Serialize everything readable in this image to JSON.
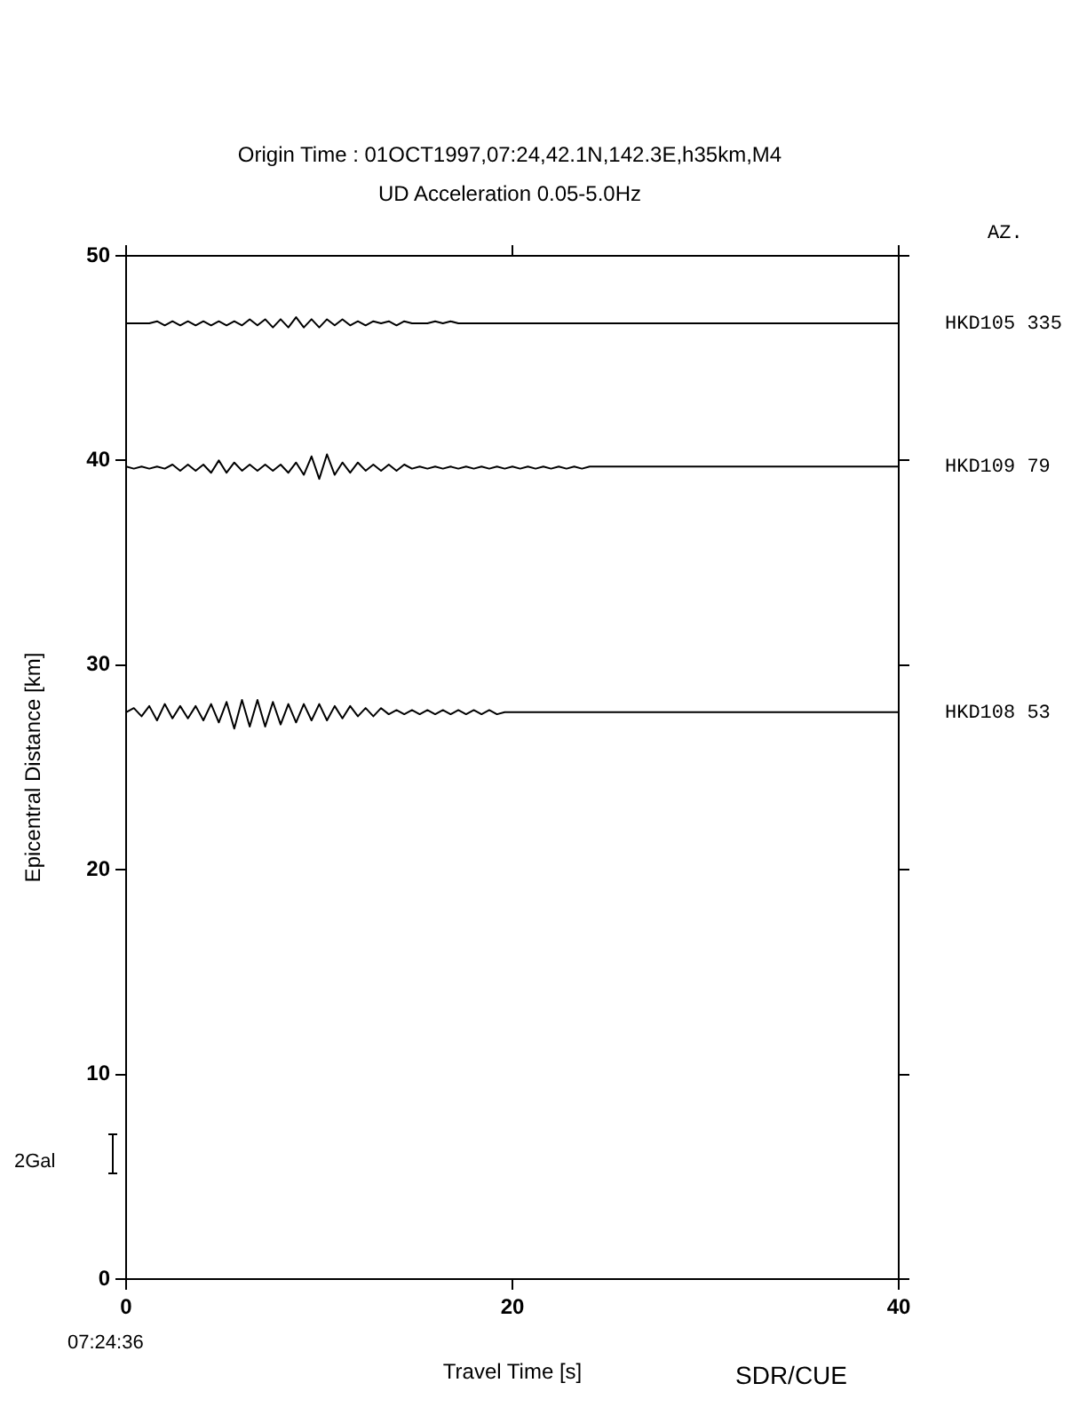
{
  "chart_data": {
    "type": "line",
    "title": "Origin Time : 01OCT1997,07:24,42.1N,142.3E,h35km,M4",
    "subtitle": "UD Acceleration 0.05-5.0Hz",
    "xlabel": "Travel Time [s]",
    "ylabel": "Epicentral Distance [km]",
    "annotations": [
      "AZ.",
      "2Gal",
      "07:24:36",
      "SDR/CUE"
    ],
    "x": [
      0,
      0.4,
      0.8,
      1.2,
      1.6,
      2,
      2.4,
      2.8,
      3.2,
      3.6,
      4,
      4.4,
      4.8,
      5.2,
      5.6,
      6,
      6.4,
      6.8,
      7.2,
      7.6,
      8,
      8.4,
      8.8,
      9.2,
      9.6,
      10,
      10.4,
      10.8,
      11.2,
      11.6,
      12,
      12.4,
      12.8,
      13.2,
      13.6,
      14,
      14.4,
      14.8,
      15.2,
      15.6,
      16,
      16.4,
      16.8,
      17.2,
      17.6,
      18,
      18.4,
      18.8,
      19.2,
      19.6,
      20,
      20.4,
      20.8,
      21.2,
      21.6,
      22,
      22.4,
      22.8,
      23.2,
      23.6,
      24,
      24.4,
      24.8,
      25.2,
      25.6,
      26,
      26.4,
      26.8,
      27.2,
      27.6,
      28,
      28.4,
      28.8,
      29.2,
      29.6,
      30,
      30.4,
      30.8,
      31.2,
      31.6,
      32,
      32.4,
      32.8,
      33.2,
      33.6,
      34,
      34.4,
      34.8,
      35.2,
      35.6,
      36,
      36.4,
      36.8,
      37.2,
      37.6,
      38,
      38.4,
      38.8,
      39.2,
      39.6,
      40
    ],
    "series": [
      {
        "name": "HKD105 335",
        "color": "#000000",
        "values": [
          46.7,
          46.7,
          46.7,
          46.7,
          46.8,
          46.6,
          46.8,
          46.6,
          46.8,
          46.6,
          46.8,
          46.6,
          46.8,
          46.6,
          46.8,
          46.6,
          46.9,
          46.6,
          46.9,
          46.5,
          46.9,
          46.5,
          47.0,
          46.5,
          46.9,
          46.5,
          46.9,
          46.6,
          46.9,
          46.6,
          46.8,
          46.6,
          46.8,
          46.7,
          46.8,
          46.6,
          46.8,
          46.7,
          46.7,
          46.7,
          46.8,
          46.7,
          46.8,
          46.7,
          46.7,
          46.7,
          46.7,
          46.7,
          46.7,
          46.7,
          46.7,
          46.7,
          46.7,
          46.7,
          46.7,
          46.7,
          46.7,
          46.7,
          46.7,
          46.7,
          46.7,
          46.7,
          46.7,
          46.7,
          46.7,
          46.7,
          46.7,
          46.7,
          46.7,
          46.7,
          46.7,
          46.7,
          46.7,
          46.7,
          46.7,
          46.7,
          46.7,
          46.7,
          46.7,
          46.7,
          46.7,
          46.7,
          46.7,
          46.7,
          46.7,
          46.7,
          46.7,
          46.7,
          46.7,
          46.7,
          46.7,
          46.7,
          46.7,
          46.7,
          46.7,
          46.7,
          46.7,
          46.7,
          46.7,
          46.7,
          46.7
        ]
      },
      {
        "name": "HKD109 79",
        "color": "#000000",
        "values": [
          39.7,
          39.6,
          39.7,
          39.6,
          39.7,
          39.6,
          39.8,
          39.5,
          39.8,
          39.5,
          39.8,
          39.4,
          40.0,
          39.4,
          39.9,
          39.5,
          39.8,
          39.5,
          39.8,
          39.5,
          39.8,
          39.4,
          39.9,
          39.3,
          40.2,
          39.1,
          40.3,
          39.3,
          39.9,
          39.4,
          39.9,
          39.5,
          39.8,
          39.5,
          39.8,
          39.5,
          39.8,
          39.6,
          39.7,
          39.6,
          39.7,
          39.6,
          39.7,
          39.6,
          39.7,
          39.6,
          39.7,
          39.6,
          39.7,
          39.6,
          39.7,
          39.6,
          39.7,
          39.6,
          39.7,
          39.6,
          39.7,
          39.6,
          39.7,
          39.6,
          39.7,
          39.7,
          39.7,
          39.7,
          39.7,
          39.7,
          39.7,
          39.7,
          39.7,
          39.7,
          39.7,
          39.7,
          39.7,
          39.7,
          39.7,
          39.7,
          39.7,
          39.7,
          39.7,
          39.7,
          39.7,
          39.7,
          39.7,
          39.7,
          39.7,
          39.7,
          39.7,
          39.7,
          39.7,
          39.7,
          39.7,
          39.7,
          39.7,
          39.7,
          39.7,
          39.7,
          39.7,
          39.7,
          39.7,
          39.7,
          39.7
        ]
      },
      {
        "name": "HKD108 53",
        "color": "#000000",
        "values": [
          27.7,
          27.9,
          27.5,
          28.0,
          27.3,
          28.1,
          27.4,
          28.0,
          27.4,
          28.0,
          27.3,
          28.1,
          27.2,
          28.2,
          26.9,
          28.3,
          27.0,
          28.3,
          27.0,
          28.2,
          27.1,
          28.1,
          27.2,
          28.1,
          27.3,
          28.1,
          27.3,
          28.0,
          27.4,
          28.0,
          27.5,
          27.9,
          27.5,
          27.9,
          27.6,
          27.8,
          27.6,
          27.8,
          27.6,
          27.8,
          27.6,
          27.8,
          27.6,
          27.8,
          27.6,
          27.8,
          27.6,
          27.8,
          27.6,
          27.7,
          27.7,
          27.7,
          27.7,
          27.7,
          27.7,
          27.7,
          27.7,
          27.7,
          27.7,
          27.7,
          27.7,
          27.7,
          27.7,
          27.7,
          27.7,
          27.7,
          27.7,
          27.7,
          27.7,
          27.7,
          27.7,
          27.7,
          27.7,
          27.7,
          27.7,
          27.7,
          27.7,
          27.7,
          27.7,
          27.7,
          27.7,
          27.7,
          27.7,
          27.7,
          27.7,
          27.7,
          27.7,
          27.7,
          27.7,
          27.7,
          27.7,
          27.7,
          27.7,
          27.7,
          27.7,
          27.7,
          27.7,
          27.7,
          27.7,
          27.7,
          27.7
        ]
      }
    ],
    "xlim": [
      0,
      40
    ],
    "xticks": [
      0,
      20,
      40
    ],
    "ylim": [
      0,
      50
    ],
    "yticks": [
      0,
      10,
      20,
      30,
      40,
      50
    ],
    "grid": false,
    "legend": "right"
  }
}
